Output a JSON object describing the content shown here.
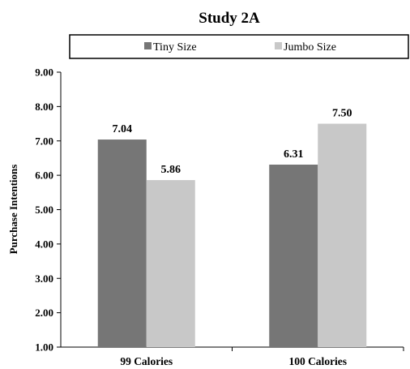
{
  "chart_data": {
    "type": "bar",
    "title": "Study 2A",
    "xlabel": "",
    "ylabel": "Purchase Intentions",
    "categories": [
      "99 Calories",
      "100 Calories"
    ],
    "series": [
      {
        "name": "Tiny Size",
        "values": [
          7.04,
          6.31
        ],
        "color": "#767676"
      },
      {
        "name": "Jumbo Size",
        "values": [
          5.86,
          7.5
        ],
        "color": "#c8c8c8"
      }
    ],
    "value_labels": [
      [
        "7.04",
        "6.31"
      ],
      [
        "5.86",
        "7.50"
      ]
    ],
    "ylim": [
      1.0,
      9.0
    ],
    "yticks": [
      "1.00",
      "2.00",
      "3.00",
      "4.00",
      "5.00",
      "6.00",
      "7.00",
      "8.00",
      "9.00"
    ],
    "grid": false,
    "legend_position": "top"
  }
}
